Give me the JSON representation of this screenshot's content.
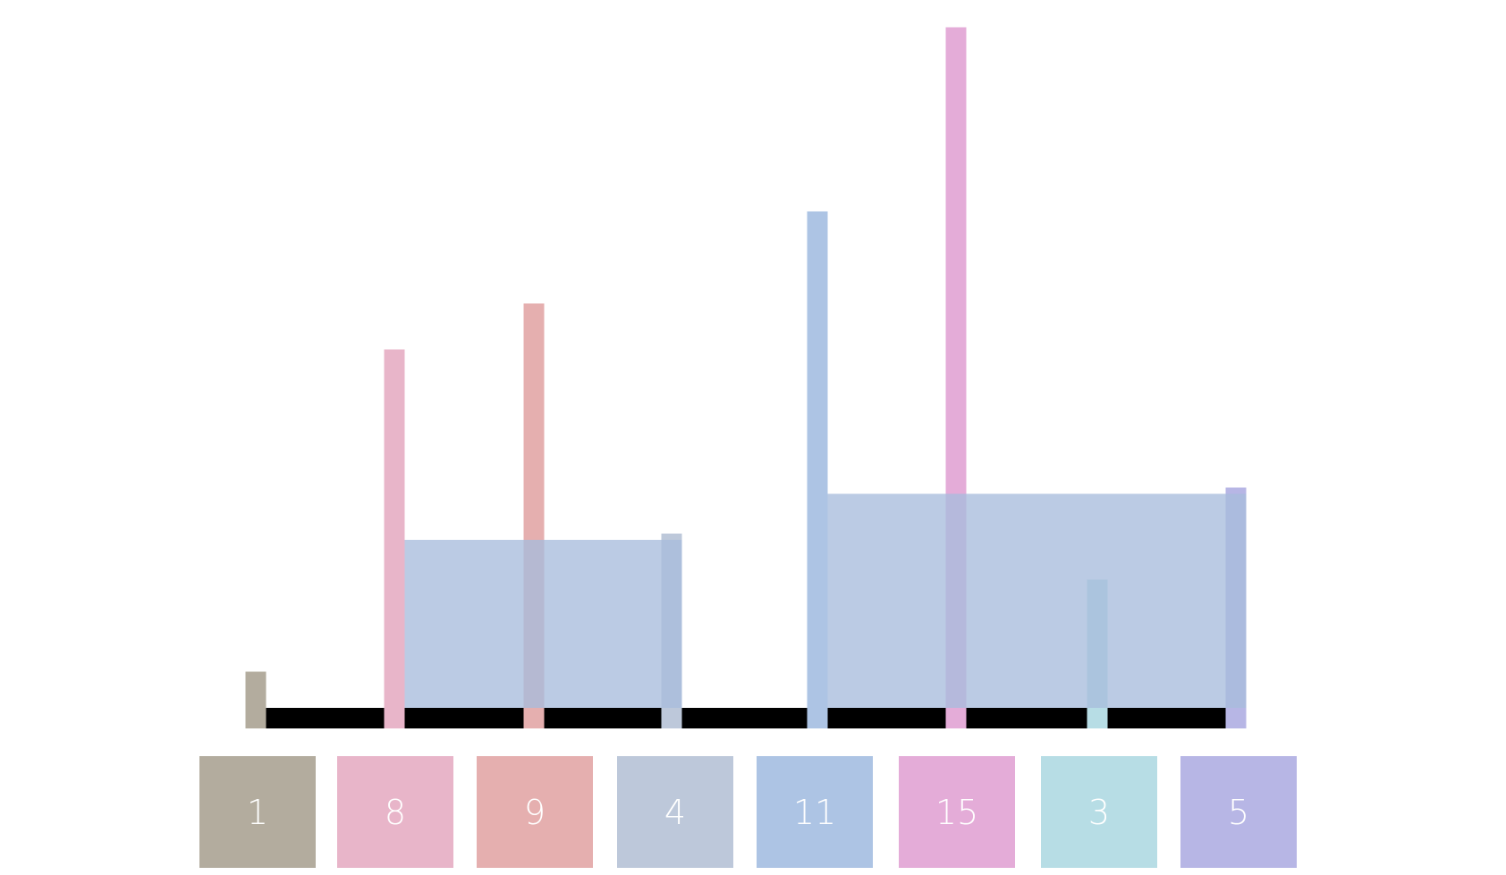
{
  "diagram": {
    "heights": [
      1,
      8,
      9,
      4,
      11,
      15,
      3,
      5
    ],
    "bar_colors": [
      "#b3ac9e",
      "#e8b5c9",
      "#e5afaf",
      "#bdc8da",
      "#adc4e4",
      "#e4acd8",
      "#b7dde5",
      "#b7b6e5"
    ],
    "water_color": "#a8bcdc",
    "base_color": "#000000",
    "containers": [
      {
        "left_index": 1,
        "right_index": 3,
        "level": 4
      },
      {
        "left_index": 4,
        "right_index": 7,
        "level": 5
      }
    ]
  },
  "cards": {
    "values": [
      "1",
      "8",
      "9",
      "4",
      "11",
      "15",
      "3",
      "5"
    ]
  }
}
